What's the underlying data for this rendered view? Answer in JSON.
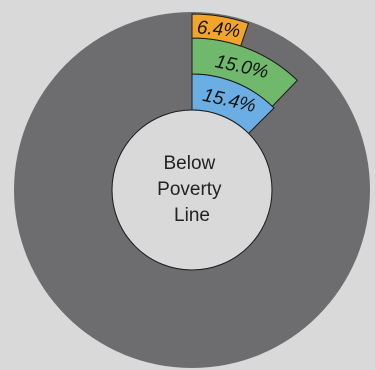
{
  "chart_data": {
    "type": "pie",
    "title": "",
    "center_label": [
      "Below",
      "Poverty",
      "Line"
    ],
    "slices": [
      {
        "label": "15.4%",
        "value": 15.4,
        "color": "#6aaee3"
      },
      {
        "label": "15.0%",
        "value": 15.0,
        "color": "#6fb86c"
      },
      {
        "label": "6.4%",
        "value": 6.4,
        "color": "#f2a52a"
      }
    ],
    "background_ring_color": "#6d6d70",
    "center_color": "#d9d9d9",
    "slice_start_angle_deg": 0,
    "slice_span_deg": 45
  }
}
